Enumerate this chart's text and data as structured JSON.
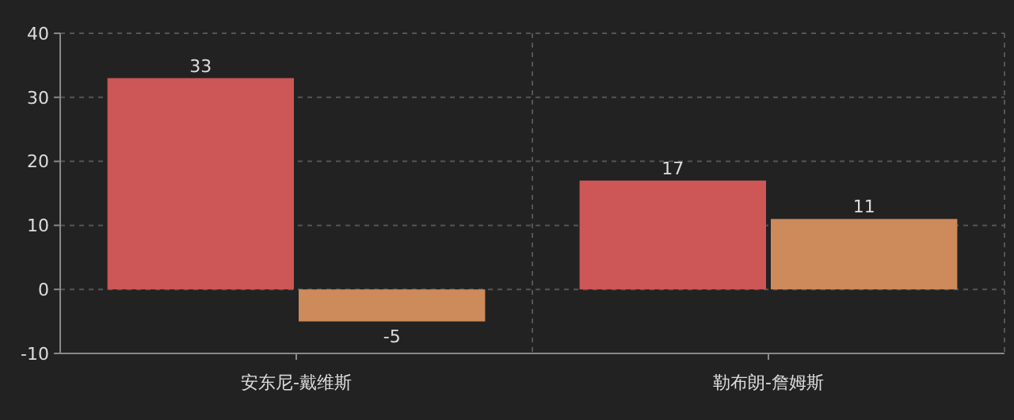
{
  "chart_data": {
    "type": "bar",
    "categories": [
      "安东尼-戴维斯",
      "勒布朗-詹姆斯"
    ],
    "series": [
      {
        "color": "#cd5656",
        "values": [
          33,
          17
        ]
      },
      {
        "color": "#cd8a5b",
        "values": [
          -5,
          11
        ]
      }
    ],
    "ylim": [
      -10,
      40
    ],
    "yticks": [
      -10,
      0,
      10,
      20,
      30,
      40
    ],
    "grid": true,
    "data_labels": true
  }
}
